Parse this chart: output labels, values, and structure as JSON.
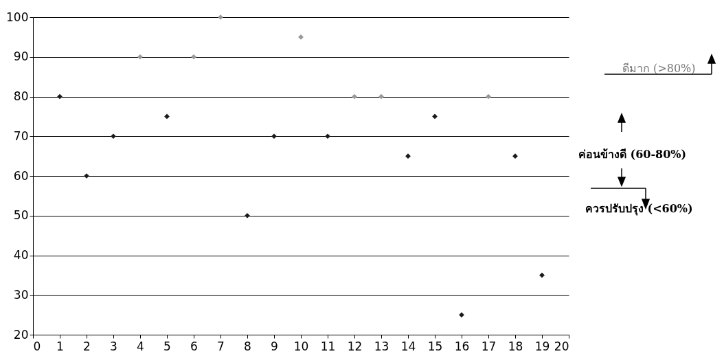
{
  "chart_data": {
    "type": "scatter",
    "x": [
      1,
      2,
      3,
      4,
      5,
      6,
      7,
      8,
      9,
      10,
      11,
      12,
      13,
      14,
      15,
      16,
      17,
      18,
      19
    ],
    "values": [
      80,
      60,
      70,
      90,
      75,
      90,
      100,
      50,
      70,
      95,
      70,
      80,
      80,
      65,
      75,
      25,
      80,
      65,
      35
    ],
    "colors": [
      "#1a1a1a",
      "#1a1a1a",
      "#1a1a1a",
      "#999999",
      "#1a1a1a",
      "#999999",
      "#999999",
      "#1a1a1a",
      "#1a1a1a",
      "#999999",
      "#1a1a1a",
      "#999999",
      "#999999",
      "#1a1a1a",
      "#1a1a1a",
      "#1a1a1a",
      "#999999",
      "#1a1a1a",
      "#1a1a1a"
    ],
    "xlim": [
      0,
      20
    ],
    "xticks": [
      0,
      1,
      2,
      3,
      4,
      5,
      6,
      7,
      8,
      9,
      10,
      11,
      12,
      13,
      14,
      15,
      16,
      17,
      18,
      19,
      20
    ],
    "ylim": [
      20,
      100
    ],
    "yticks": [
      20,
      30,
      40,
      50,
      60,
      70,
      80,
      90,
      100
    ],
    "grid": "y",
    "marker": "diamond",
    "annotations": [
      "ดีมาก (>80%)",
      "ค่อนข้างดี (60-80%)",
      "ควรปรับปรุง (<60%)"
    ]
  }
}
